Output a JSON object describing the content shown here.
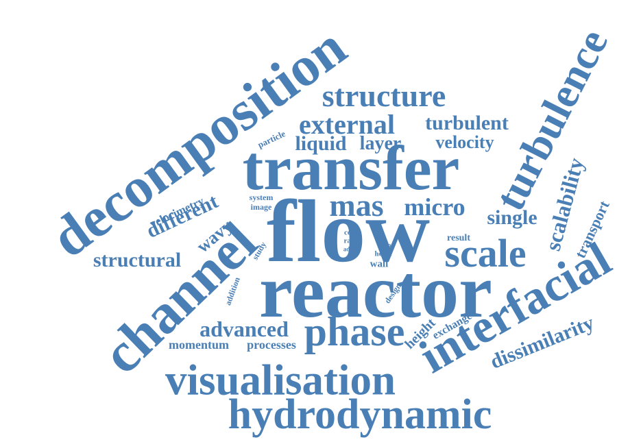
{
  "colors": {
    "word": "#4a7fb5",
    "background": "#ffffff"
  },
  "words": [
    "decomposition",
    "transfer",
    "flow",
    "reactor",
    "channel",
    "visualisation",
    "hydrodynamic",
    "interfacial",
    "turbulence",
    "phase",
    "scale",
    "structure",
    "external",
    "turbulent",
    "mas",
    "micro",
    "liquid",
    "layer",
    "velocity",
    "single",
    "scalability",
    "structural",
    "advanced",
    "dissimilarity",
    "different",
    "wavy",
    "transport",
    "velocimetry",
    "momentum",
    "processes",
    "height",
    "exchange",
    "particle",
    "system",
    "image",
    "study",
    "addition",
    "design",
    "result",
    "wall",
    "cell",
    "rate",
    "addr",
    "ratio",
    "heart",
    "field"
  ]
}
